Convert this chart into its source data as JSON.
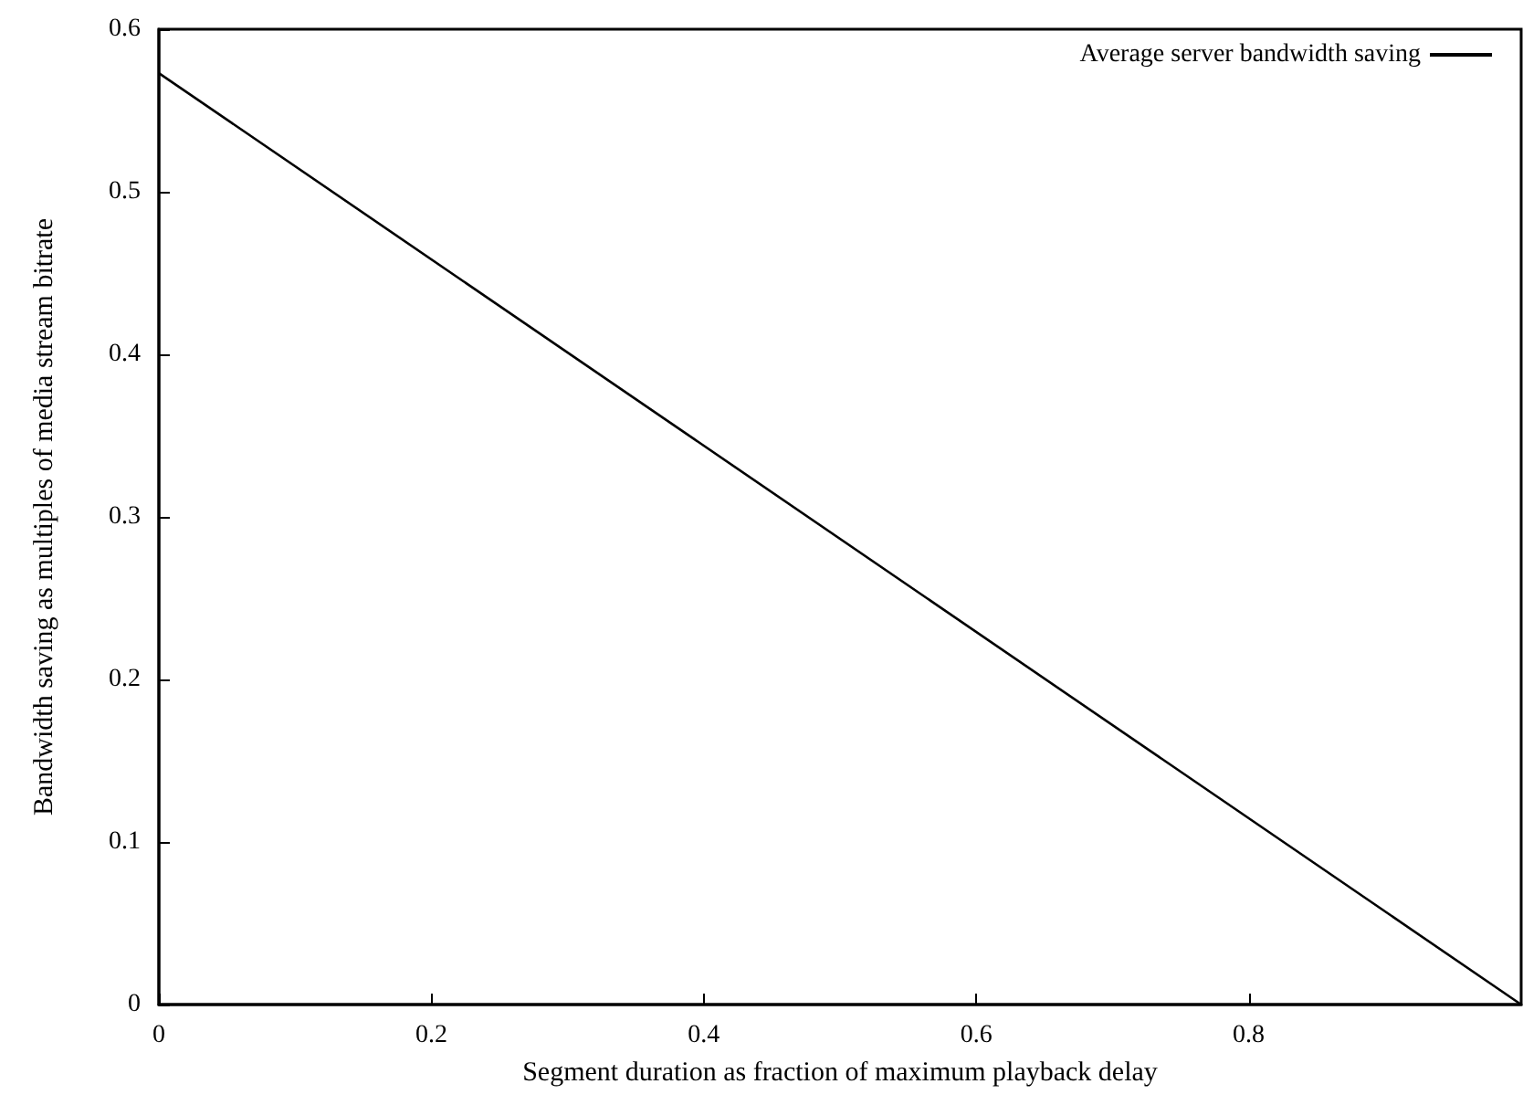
{
  "chart_data": {
    "type": "line",
    "xlabel": "Segment duration as fraction of maximum playback delay",
    "ylabel": "Bandwidth saving as multiples of media stream bitrate",
    "x": [
      0,
      1
    ],
    "series": [
      {
        "name": "Average server bandwidth saving",
        "color": "#000000",
        "values": [
          0.573,
          0
        ]
      }
    ],
    "xlim": [
      0,
      1
    ],
    "xticks": [
      0,
      0.2,
      0.4,
      0.6,
      0.8
    ],
    "ylim": [
      0,
      0.6
    ],
    "yticks": [
      0,
      0.1,
      0.2,
      0.3,
      0.4,
      0.5,
      0.6
    ],
    "grid": false,
    "legend": "top right",
    "marker": "none",
    "line_style": "solid"
  }
}
